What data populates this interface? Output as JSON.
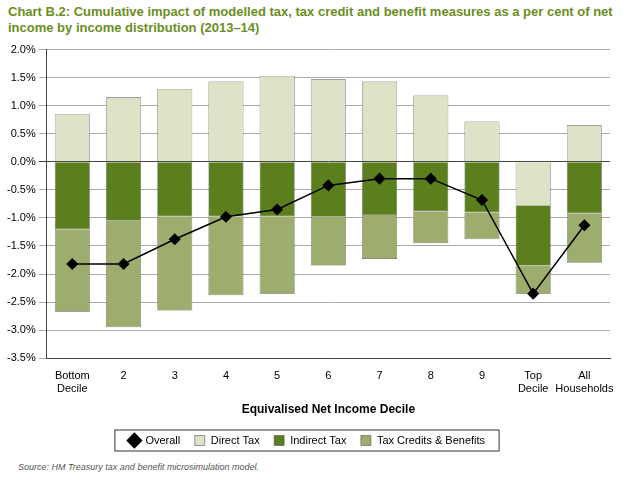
{
  "chart_data": {
    "type": "bar",
    "title": "Chart B.2: Cumulative impact of modelled tax, tax credit and benefit measures as a per cent of net income by income distribution (2013–14)",
    "x_label": "Equivalised Net Income Decile",
    "source": "Source: HM Treasury tax and benefit microsimulation model.",
    "categories": [
      "Bottom Decile",
      "2",
      "3",
      "4",
      "5",
      "6",
      "7",
      "8",
      "9",
      "Top Decile",
      "All Households"
    ],
    "stacked": true,
    "grid": true,
    "legend": "bottom",
    "series": [
      {
        "name": "Direct Tax",
        "type": "bar",
        "color": "#dde3c6",
        "values": [
          0.85,
          1.15,
          1.3,
          1.43,
          1.53,
          1.47,
          1.43,
          1.18,
          0.72,
          -0.78,
          0.65
        ]
      },
      {
        "name": "Indirect Tax",
        "type": "bar",
        "color": "#5b7f1c",
        "values": [
          -1.2,
          -1.05,
          -0.97,
          -0.97,
          -0.97,
          -0.98,
          -0.95,
          -0.88,
          -0.9,
          -1.07,
          -0.92
        ]
      },
      {
        "name": "Tax Credits & Benefits",
        "type": "bar",
        "color": "#9dad6e",
        "values": [
          -1.47,
          -1.9,
          -1.68,
          -1.41,
          -1.38,
          -0.87,
          -0.78,
          -0.57,
          -0.48,
          -0.5,
          -0.88
        ]
      },
      {
        "name": "Overall",
        "type": "line",
        "color": "#000000",
        "marker": "diamond",
        "line_style": "solid",
        "values": [
          -1.82,
          -1.82,
          -1.38,
          -0.98,
          -0.85,
          -0.42,
          -0.3,
          -0.3,
          -0.68,
          -2.35,
          -1.13
        ]
      }
    ],
    "ylim": [
      -3.5,
      2.0
    ],
    "yticks": [
      {
        "value": -3.5,
        "label": "-3.5%"
      },
      {
        "value": -3.0,
        "label": "-3.0%"
      },
      {
        "value": -2.5,
        "label": "-2.5%"
      },
      {
        "value": -2.0,
        "label": "-2.0%"
      },
      {
        "value": -1.5,
        "label": "-1.5%"
      },
      {
        "value": -1.0,
        "label": "-1.0%"
      },
      {
        "value": -0.5,
        "label": "-0.5%"
      },
      {
        "value": 0.0,
        "label": "0.0%"
      },
      {
        "value": 0.5,
        "label": "0.5%"
      },
      {
        "value": 1.0,
        "label": "1.0%"
      },
      {
        "value": 1.5,
        "label": "1.5%"
      },
      {
        "value": 2.0,
        "label": "2.0%"
      }
    ]
  }
}
